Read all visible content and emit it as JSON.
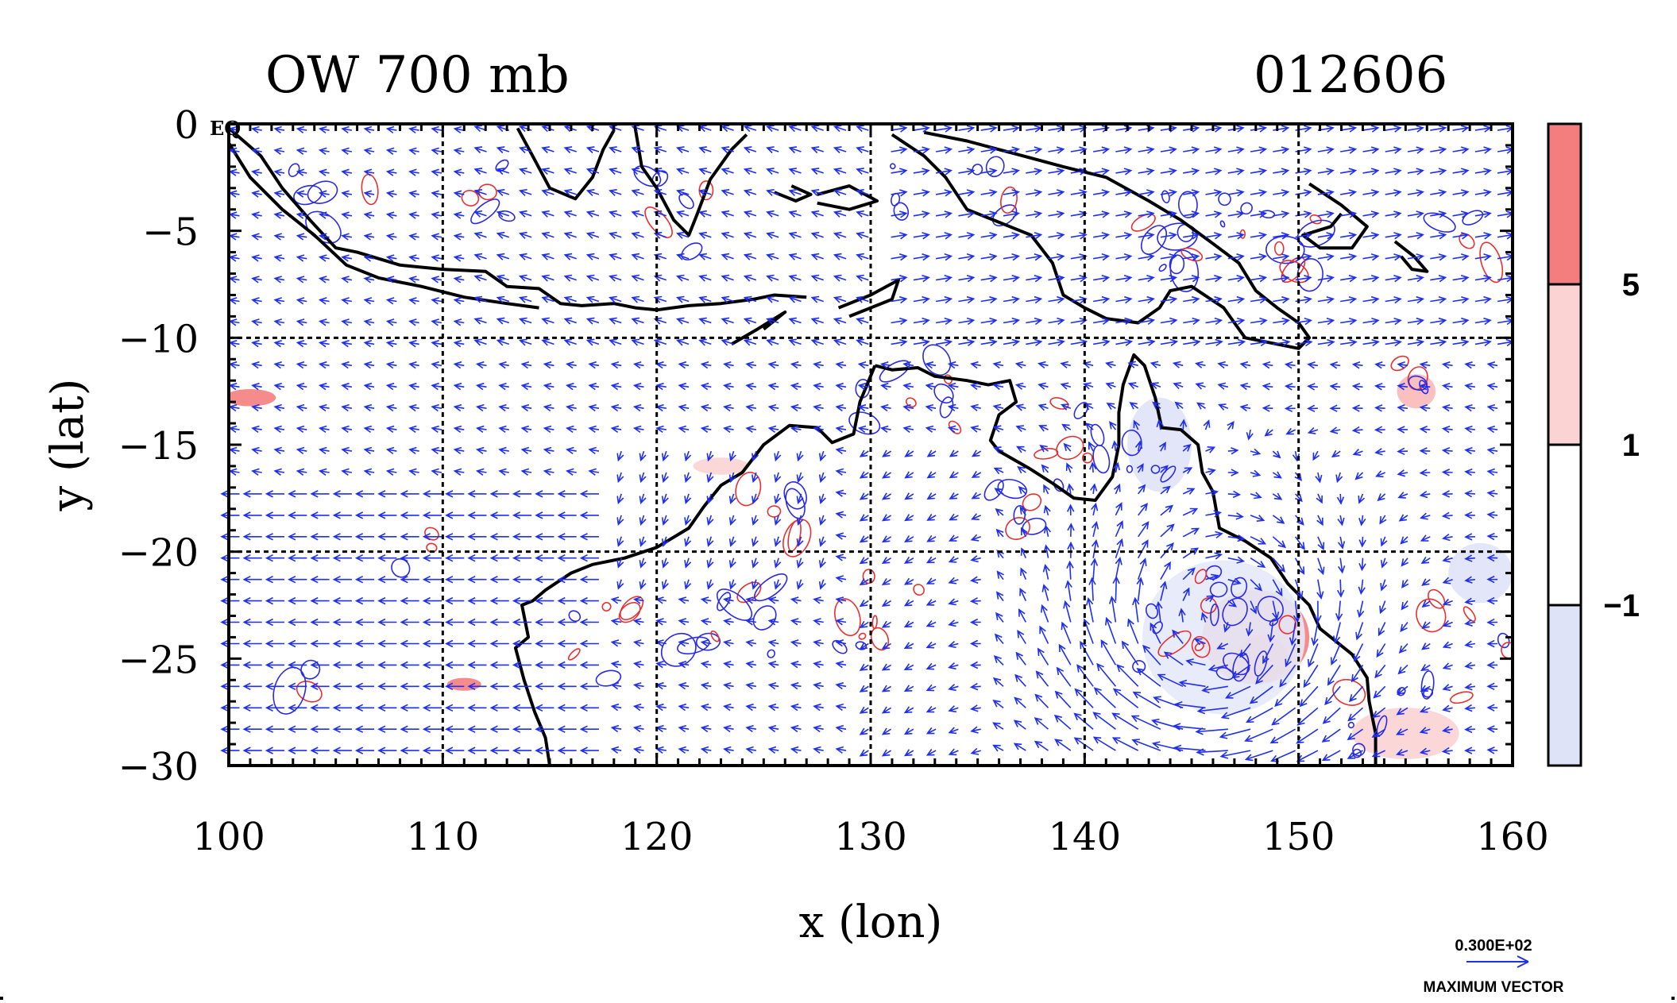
{
  "chart_data": {
    "type": "contour-vector-map",
    "title_left": "OW 700 mb",
    "title_right": "012606",
    "xlabel": "x (lon)",
    "ylabel": "y (lat)",
    "xlim": [
      100,
      160
    ],
    "ylim": [
      -30,
      0
    ],
    "x_ticks": [
      100,
      110,
      120,
      130,
      140,
      150,
      160
    ],
    "y_ticks": [
      0,
      -5,
      -10,
      -15,
      -20,
      -25,
      -30
    ],
    "x_tick_labels": [
      "100",
      "110",
      "120",
      "130",
      "140",
      "150",
      "160"
    ],
    "y_tick_labels": [
      "0",
      "−5",
      "−10",
      "−15",
      "−20",
      "−25",
      "−30"
    ],
    "grid_lon": [
      110,
      120,
      130,
      140,
      150
    ],
    "grid_lat": [
      -10,
      -20
    ],
    "corner_label": "EQ",
    "colorbar": {
      "levels": [
        "5",
        "1",
        "−1"
      ],
      "bands": [
        {
          "name": "strong-positive",
          "color": "#f47e7e"
        },
        {
          "name": "weak-positive",
          "color": "#fcd3d3"
        },
        {
          "name": "neutral",
          "color": "#ffffff"
        },
        {
          "name": "negative",
          "color": "#dfe3f7"
        }
      ]
    },
    "vector_legend": {
      "value": "0.300E+02",
      "label": "MAXIMUM VECTOR"
    },
    "colors": {
      "vectors": "#1f2ff0",
      "positive_contour": "#e83030",
      "negative_contour": "#2a2ae6",
      "coastline": "#000000"
    }
  }
}
